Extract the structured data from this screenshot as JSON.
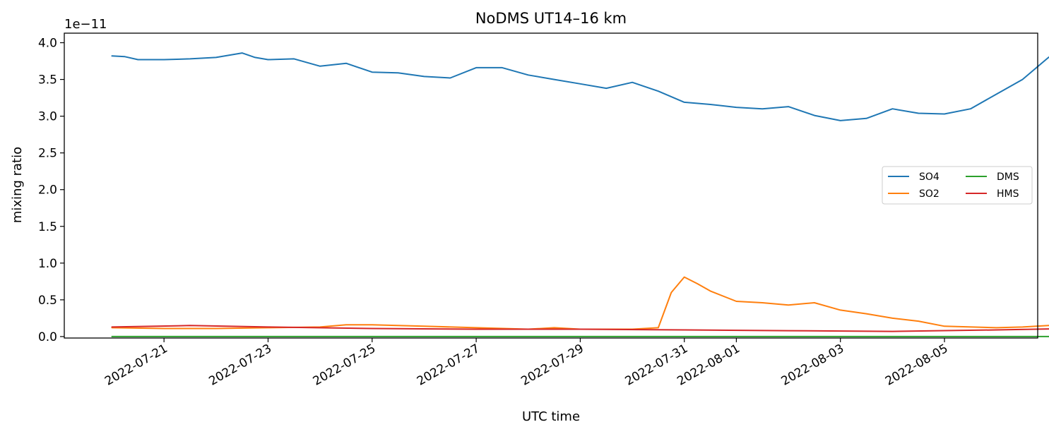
{
  "chart_data": {
    "type": "line",
    "title": "NoDMS UT14–16 km",
    "xlabel": "UTC time",
    "ylabel": "mixing ratio",
    "y_offset_text": "1e−11",
    "y_scale": 1e-11,
    "x_is_date": true,
    "xlim": [
      "2022-07-19T02:00",
      "2022-08-06T19:00"
    ],
    "ylim": [
      -2e-13,
      4.13e-11
    ],
    "x_ticks": [
      "2022-07-21",
      "2022-07-23",
      "2022-07-25",
      "2022-07-27",
      "2022-07-29",
      "2022-07-31",
      "2022-08-01",
      "2022-08-03",
      "2022-08-05"
    ],
    "y_ticks": [
      "0.0",
      "0.5",
      "1.0",
      "1.5",
      "2.0",
      "2.5",
      "3.0",
      "3.5",
      "4.0"
    ],
    "grid": false,
    "legend_position": "center-right",
    "series": [
      {
        "name": "SO4",
        "color": "#1f77b4",
        "points": [
          [
            "2022-07-20T00:00",
            3.82e-11
          ],
          [
            "2022-07-20T06:00",
            3.81e-11
          ],
          [
            "2022-07-20T12:00",
            3.77e-11
          ],
          [
            "2022-07-21T00:00",
            3.77e-11
          ],
          [
            "2022-07-21T12:00",
            3.78e-11
          ],
          [
            "2022-07-22T00:00",
            3.8e-11
          ],
          [
            "2022-07-22T12:00",
            3.86e-11
          ],
          [
            "2022-07-22T18:00",
            3.8e-11
          ],
          [
            "2022-07-23T00:00",
            3.77e-11
          ],
          [
            "2022-07-23T12:00",
            3.78e-11
          ],
          [
            "2022-07-24T00:00",
            3.68e-11
          ],
          [
            "2022-07-24T12:00",
            3.72e-11
          ],
          [
            "2022-07-25T00:00",
            3.6e-11
          ],
          [
            "2022-07-25T12:00",
            3.59e-11
          ],
          [
            "2022-07-26T00:00",
            3.54e-11
          ],
          [
            "2022-07-26T12:00",
            3.52e-11
          ],
          [
            "2022-07-27T00:00",
            3.66e-11
          ],
          [
            "2022-07-27T12:00",
            3.66e-11
          ],
          [
            "2022-07-28T00:00",
            3.56e-11
          ],
          [
            "2022-07-28T12:00",
            3.5e-11
          ],
          [
            "2022-07-29T00:00",
            3.44e-11
          ],
          [
            "2022-07-29T12:00",
            3.38e-11
          ],
          [
            "2022-07-30T00:00",
            3.46e-11
          ],
          [
            "2022-07-30T12:00",
            3.34e-11
          ],
          [
            "2022-07-31T00:00",
            3.19e-11
          ],
          [
            "2022-07-31T12:00",
            3.16e-11
          ],
          [
            "2022-08-01T00:00",
            3.12e-11
          ],
          [
            "2022-08-01T12:00",
            3.1e-11
          ],
          [
            "2022-08-02T00:00",
            3.13e-11
          ],
          [
            "2022-08-02T12:00",
            3.01e-11
          ],
          [
            "2022-08-03T00:00",
            2.94e-11
          ],
          [
            "2022-08-03T12:00",
            2.97e-11
          ],
          [
            "2022-08-04T00:00",
            3.1e-11
          ],
          [
            "2022-08-04T12:00",
            3.04e-11
          ],
          [
            "2022-08-05T00:00",
            3.03e-11
          ],
          [
            "2022-08-05T12:00",
            3.1e-11
          ],
          [
            "2022-08-06T00:00",
            3.3e-11
          ],
          [
            "2022-08-06T12:00",
            3.5e-11
          ],
          [
            "2022-08-07T00:00",
            3.8e-11
          ],
          [
            "2022-08-07T06:00",
            3.92e-11
          ],
          [
            "2022-08-07T12:00",
            3.84e-11
          ]
        ]
      },
      {
        "name": "SO2",
        "color": "#ff7f0e",
        "points": [
          [
            "2022-07-20T00:00",
            1.2e-12
          ],
          [
            "2022-07-21T00:00",
            1.1e-12
          ],
          [
            "2022-07-22T00:00",
            1.1e-12
          ],
          [
            "2022-07-23T00:00",
            1.2e-12
          ],
          [
            "2022-07-24T00:00",
            1.3e-12
          ],
          [
            "2022-07-24T12:00",
            1.6e-12
          ],
          [
            "2022-07-25T00:00",
            1.6e-12
          ],
          [
            "2022-07-26T00:00",
            1.4e-12
          ],
          [
            "2022-07-27T00:00",
            1.2e-12
          ],
          [
            "2022-07-28T00:00",
            1e-12
          ],
          [
            "2022-07-28T12:00",
            1.2e-12
          ],
          [
            "2022-07-29T00:00",
            1e-12
          ],
          [
            "2022-07-30T00:00",
            1e-12
          ],
          [
            "2022-07-30T12:00",
            1.2e-12
          ],
          [
            "2022-07-30T18:00",
            6e-12
          ],
          [
            "2022-07-31T00:00",
            8.1e-12
          ],
          [
            "2022-07-31T06:00",
            7.2e-12
          ],
          [
            "2022-07-31T12:00",
            6.2e-12
          ],
          [
            "2022-08-01T00:00",
            4.8e-12
          ],
          [
            "2022-08-01T12:00",
            4.6e-12
          ],
          [
            "2022-08-02T00:00",
            4.3e-12
          ],
          [
            "2022-08-02T12:00",
            4.6e-12
          ],
          [
            "2022-08-03T00:00",
            3.6e-12
          ],
          [
            "2022-08-03T12:00",
            3.1e-12
          ],
          [
            "2022-08-04T00:00",
            2.5e-12
          ],
          [
            "2022-08-04T12:00",
            2.1e-12
          ],
          [
            "2022-08-05T00:00",
            1.4e-12
          ],
          [
            "2022-08-06T00:00",
            1.2e-12
          ],
          [
            "2022-08-06T12:00",
            1.3e-12
          ],
          [
            "2022-08-07T00:00",
            1.5e-12
          ],
          [
            "2022-08-07T12:00",
            1.5e-12
          ]
        ]
      },
      {
        "name": "DMS",
        "color": "#2ca02c",
        "points": [
          [
            "2022-07-20T00:00",
            0.0
          ],
          [
            "2022-08-07T12:00",
            0.0
          ]
        ]
      },
      {
        "name": "HMS",
        "color": "#d62728",
        "points": [
          [
            "2022-07-20T00:00",
            1.3e-12
          ],
          [
            "2022-07-21T12:00",
            1.5e-12
          ],
          [
            "2022-07-23T00:00",
            1.3e-12
          ],
          [
            "2022-07-25T00:00",
            1.1e-12
          ],
          [
            "2022-07-27T00:00",
            1e-12
          ],
          [
            "2022-07-29T00:00",
            1e-12
          ],
          [
            "2022-07-31T00:00",
            9e-13
          ],
          [
            "2022-08-02T00:00",
            8e-13
          ],
          [
            "2022-08-04T00:00",
            7e-13
          ],
          [
            "2022-08-06T00:00",
            9e-13
          ],
          [
            "2022-08-07T12:00",
            1.1e-12
          ]
        ]
      }
    ]
  }
}
